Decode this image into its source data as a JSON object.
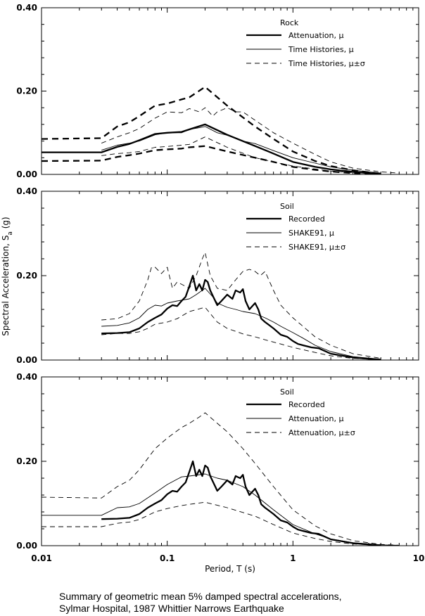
{
  "figure": {
    "y_axis_label": "Spectral Acceleration, S",
    "y_axis_label_subscript": "a",
    "y_axis_label_suffix": " (g)",
    "x_axis_label": "Period, T (s)",
    "caption_line1": "Summary of geometric mean 5% damped spectral accelerations,",
    "caption_line2": "Sylmar Hospital, 1987 Whittier Narrows Earthquake"
  },
  "chart_data": [
    {
      "type": "line",
      "x_scale": "log",
      "xlim": [
        0.01,
        10
      ],
      "ylim": [
        0,
        0.4
      ],
      "x_ticks": [
        "0.01",
        "0.1",
        "1",
        "10"
      ],
      "y_ticks": [
        "0.00",
        "0.20",
        "0.40"
      ],
      "legend_title": "Rock",
      "legend_position": "top-right",
      "series": [
        {
          "name": "Attenuation, μ",
          "style": "thick-solid",
          "x": [
            0.01,
            0.03,
            0.04,
            0.05,
            0.06,
            0.08,
            0.1,
            0.13,
            0.15,
            0.2,
            0.3,
            0.5,
            0.7,
            1.0,
            1.5,
            2.0,
            3.0,
            4.0,
            5.0
          ],
          "y": [
            0.053,
            0.053,
            0.066,
            0.073,
            0.082,
            0.097,
            0.1,
            0.102,
            0.108,
            0.12,
            0.095,
            0.068,
            0.05,
            0.03,
            0.018,
            0.012,
            0.006,
            0.003,
            0.001
          ]
        },
        {
          "name": "Time Histories, μ",
          "style": "thin-solid",
          "x": [
            0.03,
            0.04,
            0.05,
            0.06,
            0.08,
            0.1,
            0.13,
            0.15,
            0.18,
            0.2,
            0.25,
            0.3,
            0.4,
            0.5,
            0.7,
            1.0,
            1.5,
            2.0,
            3.0,
            5.0
          ],
          "y": [
            0.058,
            0.07,
            0.075,
            0.08,
            0.095,
            0.1,
            0.1,
            0.108,
            0.112,
            0.115,
            0.1,
            0.094,
            0.08,
            0.074,
            0.057,
            0.04,
            0.027,
            0.018,
            0.01,
            0.003
          ]
        },
        {
          "name": "Time Histories, μ±σ",
          "style": "thin-dashed",
          "x": [
            0.03,
            0.04,
            0.05,
            0.06,
            0.08,
            0.1,
            0.13,
            0.15,
            0.18,
            0.2,
            0.23,
            0.25,
            0.3,
            0.35,
            0.4,
            0.5,
            0.7,
            1.0,
            1.5,
            2.0,
            3.0,
            5.0,
            7.0
          ],
          "y": [
            0.075,
            0.09,
            0.1,
            0.11,
            0.135,
            0.15,
            0.148,
            0.158,
            0.15,
            0.16,
            0.14,
            0.15,
            0.16,
            0.15,
            0.15,
            0.13,
            0.1,
            0.075,
            0.048,
            0.03,
            0.015,
            0.006,
            0.003
          ]
        },
        {
          "name": "Time Histories, μ±σ (lower)",
          "style": "thin-dashed",
          "x": [
            0.03,
            0.04,
            0.05,
            0.06,
            0.08,
            0.1,
            0.13,
            0.15,
            0.2,
            0.3,
            0.5,
            0.7,
            1.0,
            1.5,
            2.0,
            3.0,
            5.0
          ],
          "y": [
            0.045,
            0.05,
            0.052,
            0.055,
            0.065,
            0.067,
            0.07,
            0.072,
            0.09,
            0.065,
            0.04,
            0.03,
            0.02,
            0.013,
            0.008,
            0.004,
            0.001
          ]
        },
        {
          "name": "Attenuation, μ±σ (upper)",
          "style": "thick-dashed",
          "x": [
            0.01,
            0.03,
            0.04,
            0.05,
            0.06,
            0.08,
            0.1,
            0.13,
            0.15,
            0.2,
            0.3,
            0.5,
            0.7,
            1.0,
            1.5,
            2.0,
            3.0,
            4.0,
            5.0
          ],
          "y": [
            0.085,
            0.087,
            0.115,
            0.125,
            0.14,
            0.165,
            0.17,
            0.18,
            0.185,
            0.21,
            0.165,
            0.115,
            0.085,
            0.055,
            0.032,
            0.02,
            0.01,
            0.005,
            0.002
          ]
        },
        {
          "name": "Attenuation, μ±σ (lower)",
          "style": "thick-dashed",
          "x": [
            0.01,
            0.03,
            0.04,
            0.05,
            0.06,
            0.08,
            0.1,
            0.13,
            0.15,
            0.2,
            0.3,
            0.5,
            0.7,
            1.0,
            1.5,
            2.0,
            3.0,
            4.0,
            5.0
          ],
          "y": [
            0.032,
            0.033,
            0.042,
            0.046,
            0.05,
            0.058,
            0.06,
            0.062,
            0.065,
            0.068,
            0.055,
            0.04,
            0.03,
            0.018,
            0.011,
            0.007,
            0.003,
            0.002,
            0.001
          ]
        }
      ],
      "legend": [
        {
          "label": "Attenuation, μ",
          "style": "thick-solid"
        },
        {
          "label": "Time Histories, μ",
          "style": "thin-solid"
        },
        {
          "label": "Time Histories, μ±σ",
          "style": "thin-dashed"
        }
      ]
    },
    {
      "type": "line",
      "x_scale": "log",
      "xlim": [
        0.01,
        10
      ],
      "ylim": [
        0,
        0.4
      ],
      "y_ticks": [
        "0.00",
        "0.20",
        "0.40"
      ],
      "legend_title": "Soil",
      "legend_position": "top-right",
      "series": [
        {
          "name": "Recorded",
          "style": "thick-solid",
          "x": [
            0.03,
            0.04,
            0.05,
            0.06,
            0.07,
            0.08,
            0.09,
            0.1,
            0.11,
            0.12,
            0.13,
            0.14,
            0.15,
            0.16,
            0.17,
            0.18,
            0.19,
            0.2,
            0.21,
            0.22,
            0.25,
            0.27,
            0.3,
            0.33,
            0.35,
            0.38,
            0.4,
            0.42,
            0.45,
            0.5,
            0.53,
            0.56,
            0.6,
            0.7,
            0.8,
            0.9,
            1.0,
            1.1,
            1.2,
            1.4,
            1.6,
            2.0,
            3.0,
            4.0,
            5.0
          ],
          "y": [
            0.063,
            0.064,
            0.066,
            0.075,
            0.09,
            0.1,
            0.108,
            0.122,
            0.13,
            0.128,
            0.14,
            0.15,
            0.175,
            0.2,
            0.165,
            0.18,
            0.165,
            0.19,
            0.185,
            0.165,
            0.13,
            0.14,
            0.155,
            0.145,
            0.165,
            0.16,
            0.168,
            0.14,
            0.12,
            0.135,
            0.12,
            0.098,
            0.09,
            0.075,
            0.06,
            0.055,
            0.045,
            0.038,
            0.035,
            0.03,
            0.028,
            0.015,
            0.006,
            0.003,
            0.001
          ]
        },
        {
          "name": "SHAKE91, μ",
          "style": "thin-solid",
          "x": [
            0.03,
            0.04,
            0.05,
            0.06,
            0.07,
            0.08,
            0.09,
            0.1,
            0.12,
            0.15,
            0.17,
            0.2,
            0.23,
            0.25,
            0.3,
            0.35,
            0.4,
            0.5,
            0.6,
            0.7,
            0.8,
            1.0,
            1.2,
            1.5,
            2.0,
            3.0,
            5.0
          ],
          "y": [
            0.08,
            0.082,
            0.088,
            0.1,
            0.12,
            0.13,
            0.128,
            0.135,
            0.14,
            0.145,
            0.155,
            0.17,
            0.15,
            0.135,
            0.125,
            0.12,
            0.115,
            0.11,
            0.1,
            0.09,
            0.08,
            0.065,
            0.052,
            0.035,
            0.02,
            0.008,
            0.002
          ]
        },
        {
          "name": "SHAKE91, μ±σ",
          "style": "thin-dashed",
          "x": [
            0.03,
            0.04,
            0.05,
            0.06,
            0.07,
            0.075,
            0.08,
            0.09,
            0.1,
            0.11,
            0.12,
            0.15,
            0.17,
            0.19,
            0.2,
            0.22,
            0.25,
            0.3,
            0.35,
            0.4,
            0.45,
            0.5,
            0.55,
            0.6,
            0.7,
            0.8,
            1.0,
            1.2,
            1.5,
            2.0,
            3.0,
            5.0
          ],
          "y": [
            0.095,
            0.098,
            0.11,
            0.14,
            0.19,
            0.22,
            0.22,
            0.205,
            0.22,
            0.17,
            0.185,
            0.17,
            0.2,
            0.24,
            0.255,
            0.2,
            0.17,
            0.165,
            0.19,
            0.21,
            0.215,
            0.21,
            0.2,
            0.21,
            0.165,
            0.13,
            0.1,
            0.08,
            0.055,
            0.035,
            0.015,
            0.004
          ]
        },
        {
          "name": "SHAKE91, μ±σ (lower)",
          "style": "thin-dashed",
          "x": [
            0.03,
            0.04,
            0.05,
            0.06,
            0.07,
            0.08,
            0.1,
            0.12,
            0.15,
            0.2,
            0.25,
            0.3,
            0.4,
            0.5,
            0.6,
            0.8,
            1.0,
            1.5,
            2.0,
            3.0,
            5.0
          ],
          "y": [
            0.06,
            0.063,
            0.063,
            0.067,
            0.075,
            0.085,
            0.09,
            0.098,
            0.115,
            0.125,
            0.09,
            0.075,
            0.062,
            0.055,
            0.048,
            0.038,
            0.03,
            0.018,
            0.01,
            0.004,
            0.001
          ]
        }
      ],
      "legend": [
        {
          "label": "Recorded",
          "style": "thick-solid"
        },
        {
          "label": "SHAKE91, μ",
          "style": "thin-solid"
        },
        {
          "label": "SHAKE91, μ±σ",
          "style": "thin-dashed"
        }
      ]
    },
    {
      "type": "line",
      "x_scale": "log",
      "xlim": [
        0.01,
        10
      ],
      "ylim": [
        0,
        0.4
      ],
      "x_ticks": [
        "0.01",
        "0.1",
        "1",
        "10"
      ],
      "y_ticks": [
        "0.00",
        "0.20",
        "0.40"
      ],
      "legend_title": "Soil",
      "legend_position": "top-right",
      "series": [
        {
          "name": "Recorded",
          "style": "thick-solid",
          "x": [
            0.03,
            0.04,
            0.05,
            0.06,
            0.07,
            0.08,
            0.09,
            0.1,
            0.11,
            0.12,
            0.13,
            0.14,
            0.15,
            0.16,
            0.17,
            0.18,
            0.19,
            0.2,
            0.21,
            0.22,
            0.25,
            0.27,
            0.3,
            0.33,
            0.35,
            0.38,
            0.4,
            0.42,
            0.45,
            0.5,
            0.53,
            0.56,
            0.6,
            0.7,
            0.8,
            0.9,
            1.0,
            1.1,
            1.2,
            1.4,
            1.6,
            2.0,
            3.0,
            4.0,
            5.0
          ],
          "y": [
            0.063,
            0.064,
            0.066,
            0.075,
            0.09,
            0.1,
            0.108,
            0.122,
            0.13,
            0.128,
            0.14,
            0.15,
            0.175,
            0.2,
            0.165,
            0.18,
            0.165,
            0.19,
            0.185,
            0.165,
            0.13,
            0.14,
            0.155,
            0.145,
            0.165,
            0.16,
            0.168,
            0.14,
            0.12,
            0.135,
            0.12,
            0.098,
            0.09,
            0.075,
            0.06,
            0.055,
            0.045,
            0.038,
            0.035,
            0.03,
            0.028,
            0.015,
            0.006,
            0.003,
            0.001
          ]
        },
        {
          "name": "Attenuation, μ",
          "style": "thin-solid",
          "x": [
            0.01,
            0.03,
            0.04,
            0.05,
            0.06,
            0.08,
            0.1,
            0.13,
            0.15,
            0.2,
            0.25,
            0.3,
            0.4,
            0.5,
            0.7,
            1.0,
            1.5,
            2.0,
            3.0,
            5.0,
            7.0
          ],
          "y": [
            0.072,
            0.072,
            0.09,
            0.092,
            0.1,
            0.125,
            0.145,
            0.163,
            0.165,
            0.17,
            0.16,
            0.155,
            0.14,
            0.12,
            0.085,
            0.05,
            0.028,
            0.016,
            0.007,
            0.002,
            0.001
          ]
        },
        {
          "name": "Attenuation, μ±σ",
          "style": "thin-dashed",
          "x": [
            0.01,
            0.03,
            0.04,
            0.05,
            0.06,
            0.08,
            0.1,
            0.13,
            0.15,
            0.18,
            0.2,
            0.25,
            0.3,
            0.4,
            0.5,
            0.7,
            1.0,
            1.5,
            2.0,
            3.0,
            5.0,
            7.0
          ],
          "y": [
            0.115,
            0.113,
            0.14,
            0.155,
            0.18,
            0.23,
            0.255,
            0.28,
            0.29,
            0.305,
            0.315,
            0.29,
            0.27,
            0.23,
            0.195,
            0.14,
            0.085,
            0.047,
            0.028,
            0.012,
            0.003,
            0.001
          ]
        },
        {
          "name": "Attenuation, μ±σ (lower)",
          "style": "thin-dashed",
          "x": [
            0.01,
            0.03,
            0.04,
            0.05,
            0.06,
            0.08,
            0.1,
            0.13,
            0.15,
            0.2,
            0.3,
            0.5,
            0.7,
            1.0,
            1.5,
            2.0,
            3.0,
            5.0
          ],
          "y": [
            0.045,
            0.045,
            0.053,
            0.056,
            0.062,
            0.08,
            0.088,
            0.095,
            0.098,
            0.103,
            0.09,
            0.07,
            0.05,
            0.03,
            0.017,
            0.01,
            0.004,
            0.001
          ]
        }
      ],
      "legend": [
        {
          "label": "Recorded",
          "style": "thick-solid"
        },
        {
          "label": "Attenuation, μ",
          "style": "thin-solid"
        },
        {
          "label": "Attenuation, μ±σ",
          "style": "thin-dashed"
        }
      ]
    }
  ]
}
